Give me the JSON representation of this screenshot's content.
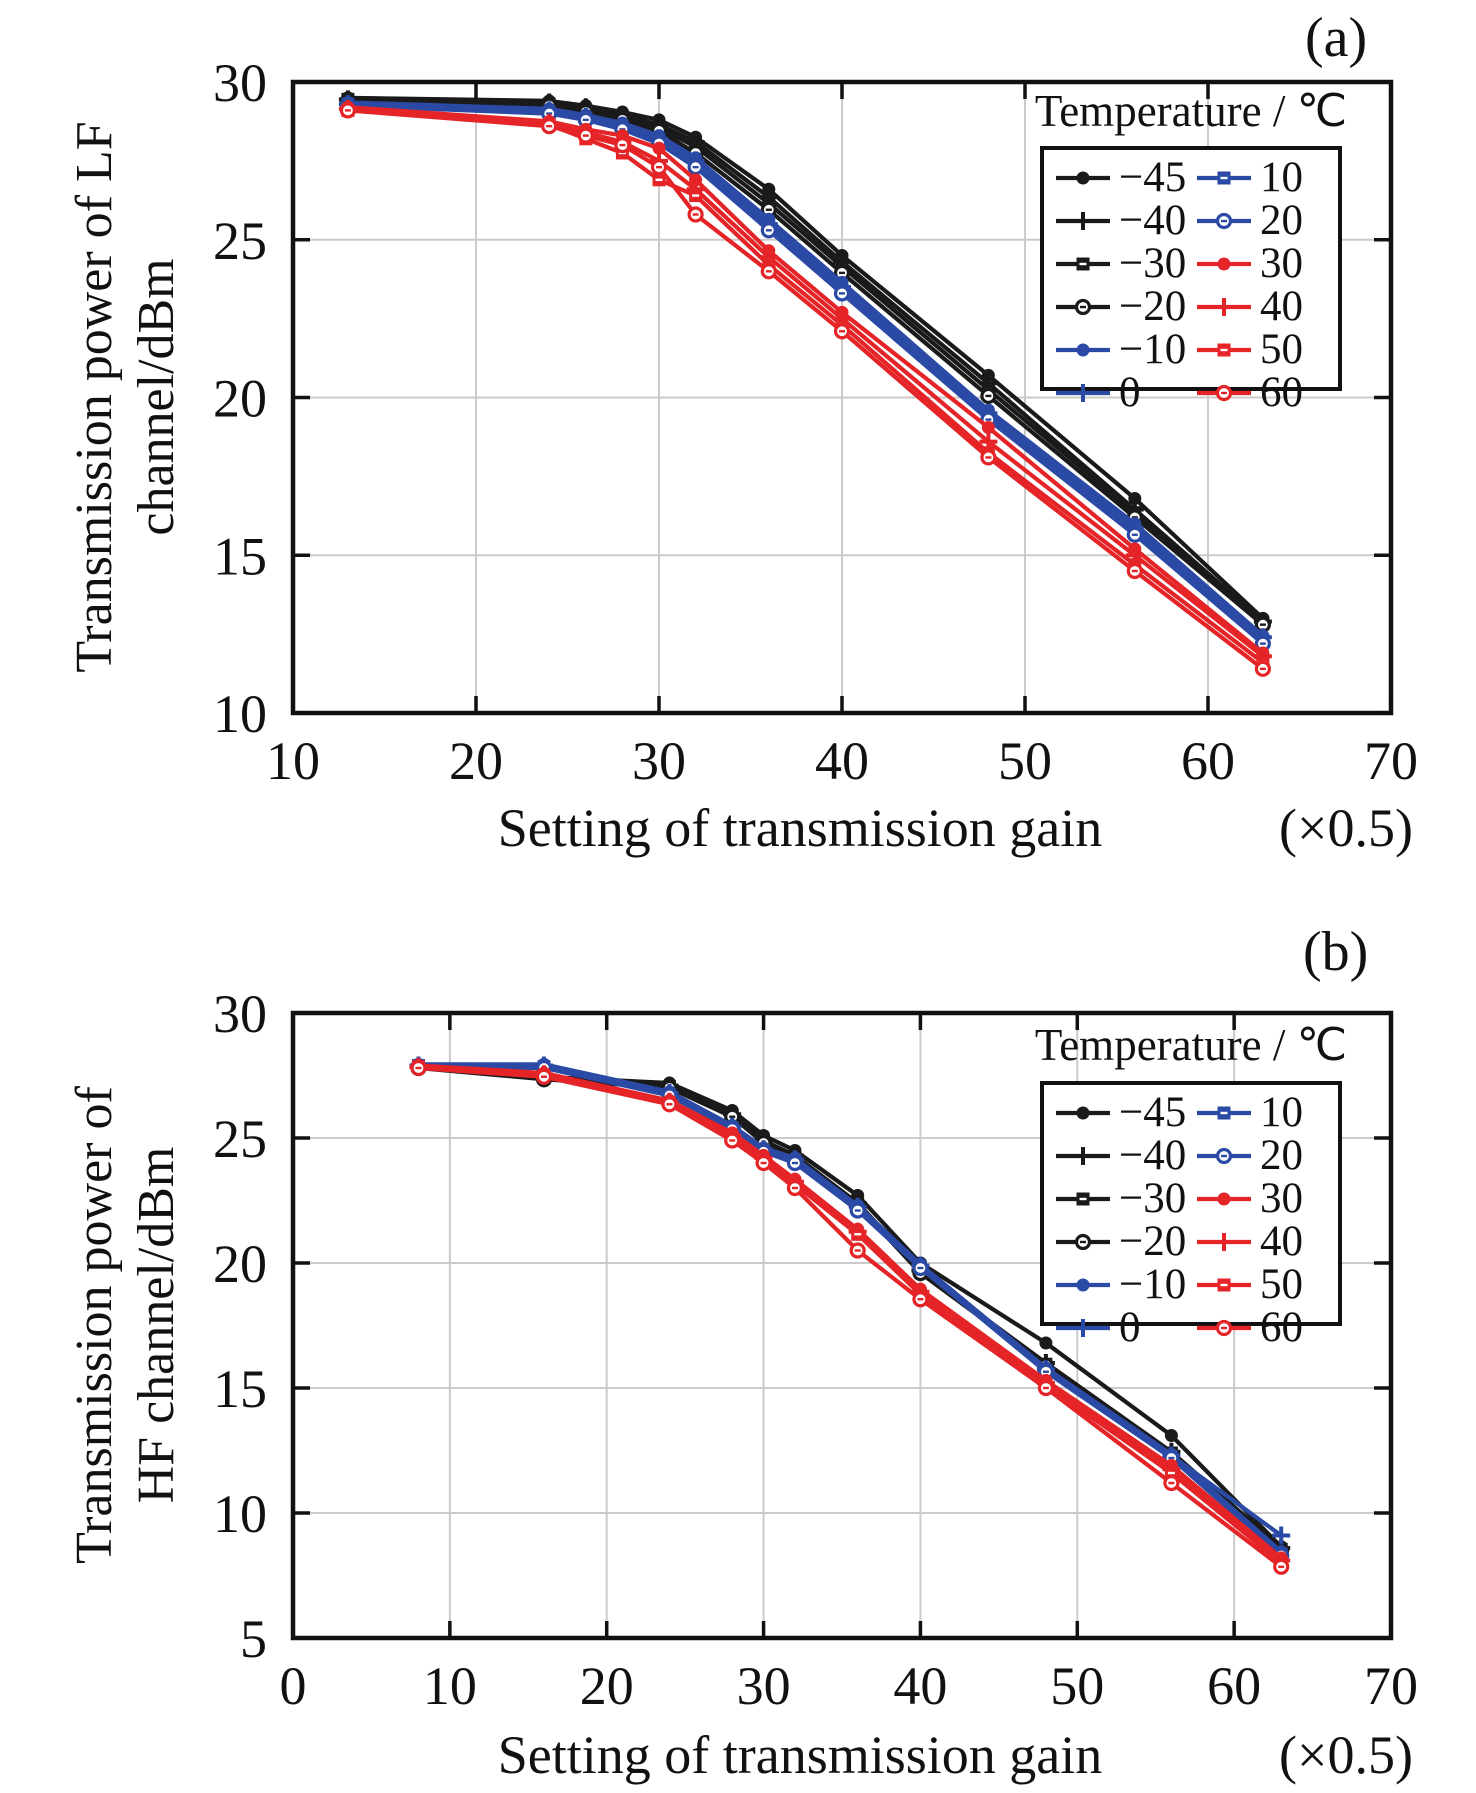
{
  "figure": {
    "background": "#ffffff",
    "colors": {
      "black": "#1a1a1a",
      "blue": "#2b4aa5",
      "red": "#e52428",
      "grid": "#cbcbcb",
      "text": "#111111"
    }
  },
  "chart_data": [
    {
      "type": "line",
      "panel": "(a)",
      "ylabel_line1": "Transmission power of LF",
      "ylabel_line2": "channel/dBm",
      "xlabel": "Setting of transmission gain",
      "x_unit": "(×0.5)",
      "legend_title": "Temperature / ℃",
      "legend_position": "upper right, two columns",
      "grid": "on",
      "xlim": [
        10,
        70
      ],
      "ylim": [
        10,
        30
      ],
      "x_ticks": [
        10,
        20,
        30,
        40,
        50,
        60,
        70
      ],
      "y_ticks": [
        10,
        15,
        20,
        25,
        30
      ],
      "x": [
        13,
        24,
        26,
        28,
        30,
        32,
        36,
        40,
        48,
        56,
        63
      ],
      "series": [
        {
          "name": "−45",
          "temp": -45,
          "color_key": "black",
          "marker": "circle",
          "values": [
            29.5,
            29.4,
            29.25,
            29.05,
            28.8,
            28.25,
            26.6,
            24.5,
            20.7,
            16.8,
            13.0
          ]
        },
        {
          "name": "−40",
          "temp": -40,
          "color_key": "black",
          "marker": "plus",
          "values": [
            29.45,
            29.35,
            29.2,
            28.95,
            28.65,
            28.1,
            26.35,
            24.3,
            20.45,
            16.45,
            12.9
          ]
        },
        {
          "name": "−30",
          "temp": -30,
          "color_key": "black",
          "marker": "square",
          "values": [
            29.45,
            29.3,
            29.1,
            28.9,
            28.55,
            27.95,
            26.15,
            24.15,
            20.25,
            16.35,
            12.85
          ]
        },
        {
          "name": "−20",
          "temp": -20,
          "color_key": "black",
          "marker": "circle-open",
          "values": [
            29.4,
            29.25,
            29.05,
            28.8,
            28.45,
            27.75,
            25.95,
            23.95,
            20.05,
            16.2,
            12.8
          ]
        },
        {
          "name": "−10",
          "temp": -10,
          "color_key": "blue",
          "marker": "circle",
          "values": [
            29.35,
            29.15,
            28.95,
            28.7,
            28.3,
            27.6,
            25.65,
            23.65,
            19.6,
            16.0,
            12.45
          ]
        },
        {
          "name": "0",
          "temp": 0,
          "color_key": "blue",
          "marker": "plus",
          "values": [
            29.3,
            29.1,
            28.9,
            28.6,
            28.2,
            27.5,
            25.5,
            23.5,
            19.5,
            15.85,
            12.4
          ]
        },
        {
          "name": "10",
          "temp": 10,
          "color_key": "blue",
          "marker": "square",
          "values": [
            29.3,
            29.05,
            28.85,
            28.55,
            28.1,
            27.4,
            25.4,
            23.4,
            19.4,
            15.75,
            12.3
          ]
        },
        {
          "name": "20",
          "temp": 20,
          "color_key": "blue",
          "marker": "circle-open",
          "values": [
            29.25,
            29.0,
            28.8,
            28.5,
            28.05,
            27.3,
            25.3,
            23.3,
            19.3,
            15.65,
            12.2
          ]
        },
        {
          "name": "30",
          "temp": 30,
          "color_key": "red",
          "marker": "circle",
          "values": [
            29.2,
            28.75,
            28.5,
            28.3,
            27.9,
            26.9,
            24.65,
            22.7,
            19.05,
            15.2,
            11.9
          ]
        },
        {
          "name": "40",
          "temp": 40,
          "color_key": "red",
          "marker": "plus",
          "values": [
            29.15,
            28.7,
            28.4,
            28.1,
            27.5,
            26.6,
            24.45,
            22.5,
            18.6,
            15.0,
            11.8
          ]
        },
        {
          "name": "50",
          "temp": 50,
          "color_key": "red",
          "marker": "square",
          "values": [
            29.1,
            28.65,
            28.2,
            27.75,
            26.9,
            26.4,
            24.2,
            22.3,
            18.25,
            14.7,
            11.6
          ]
        },
        {
          "name": "60",
          "temp": 60,
          "color_key": "red",
          "marker": "circle-open",
          "values": [
            29.1,
            28.6,
            28.3,
            28.0,
            27.3,
            25.8,
            24.0,
            22.1,
            18.1,
            14.5,
            11.4
          ]
        }
      ]
    },
    {
      "type": "line",
      "panel": "(b)",
      "ylabel_line1": "Transmission power of",
      "ylabel_line2": "HF channel/dBm",
      "xlabel": "Setting of transmission gain",
      "x_unit": "(×0.5)",
      "legend_title": "Temperature / ℃",
      "legend_position": "upper right, two columns",
      "grid": "on",
      "xlim": [
        0,
        70
      ],
      "ylim": [
        5,
        30
      ],
      "x_ticks": [
        0,
        10,
        20,
        30,
        40,
        50,
        60,
        70
      ],
      "y_ticks": [
        5,
        10,
        15,
        20,
        25,
        30
      ],
      "x": [
        8,
        16,
        24,
        28,
        30,
        32,
        36,
        40,
        48,
        56,
        63
      ],
      "series": [
        {
          "name": "−45",
          "temp": -45,
          "color_key": "black",
          "marker": "circle",
          "values": [
            27.9,
            27.45,
            27.2,
            26.1,
            25.1,
            24.5,
            22.7,
            20.0,
            16.8,
            13.1,
            8.65
          ]
        },
        {
          "name": "−40",
          "temp": -40,
          "color_key": "black",
          "marker": "plus",
          "values": [
            27.85,
            27.4,
            27.1,
            25.95,
            24.9,
            24.3,
            22.4,
            19.7,
            16.0,
            12.45,
            8.6
          ]
        },
        {
          "name": "−30",
          "temp": -30,
          "color_key": "black",
          "marker": "square",
          "values": [
            27.85,
            27.4,
            27.05,
            25.9,
            24.85,
            24.2,
            22.35,
            19.65,
            15.95,
            12.4,
            8.55
          ]
        },
        {
          "name": "−20",
          "temp": -20,
          "color_key": "black",
          "marker": "circle-open",
          "values": [
            27.8,
            27.35,
            27.0,
            25.85,
            24.8,
            24.15,
            22.3,
            19.6,
            15.9,
            12.35,
            8.5
          ]
        },
        {
          "name": "−10",
          "temp": -10,
          "color_key": "blue",
          "marker": "circle",
          "values": [
            27.95,
            27.95,
            26.85,
            25.5,
            24.6,
            24.2,
            22.3,
            19.95,
            15.8,
            12.35,
            8.45
          ]
        },
        {
          "name": "0",
          "temp": 0,
          "color_key": "blue",
          "marker": "plus",
          "values": [
            27.9,
            27.9,
            26.8,
            25.45,
            24.55,
            24.15,
            22.25,
            19.9,
            15.75,
            12.3,
            9.1
          ]
        },
        {
          "name": "10",
          "temp": 10,
          "color_key": "blue",
          "marker": "square",
          "values": [
            27.9,
            27.85,
            26.75,
            25.4,
            24.5,
            24.1,
            22.15,
            19.85,
            15.7,
            12.25,
            8.35
          ]
        },
        {
          "name": "20",
          "temp": 20,
          "color_key": "blue",
          "marker": "circle-open",
          "values": [
            27.85,
            27.8,
            26.7,
            25.35,
            24.45,
            24.0,
            22.1,
            19.8,
            15.65,
            12.2,
            8.3
          ]
        },
        {
          "name": "30",
          "temp": 30,
          "color_key": "red",
          "marker": "circle",
          "values": [
            27.9,
            27.6,
            26.5,
            25.2,
            24.3,
            23.35,
            21.35,
            18.95,
            15.3,
            11.9,
            8.2
          ]
        },
        {
          "name": "40",
          "temp": 40,
          "color_key": "red",
          "marker": "plus",
          "values": [
            27.85,
            27.55,
            26.45,
            25.1,
            24.2,
            23.25,
            21.25,
            18.85,
            15.2,
            11.75,
            8.1
          ]
        },
        {
          "name": "50",
          "temp": 50,
          "color_key": "red",
          "marker": "square",
          "values": [
            27.85,
            27.5,
            26.4,
            25.0,
            24.1,
            23.15,
            21.15,
            18.75,
            15.1,
            11.6,
            8.0
          ]
        },
        {
          "name": "60",
          "temp": 60,
          "color_key": "red",
          "marker": "circle-open",
          "values": [
            27.8,
            27.45,
            26.35,
            24.9,
            24.0,
            23.0,
            20.5,
            18.55,
            15.0,
            11.2,
            7.85
          ]
        }
      ]
    }
  ]
}
